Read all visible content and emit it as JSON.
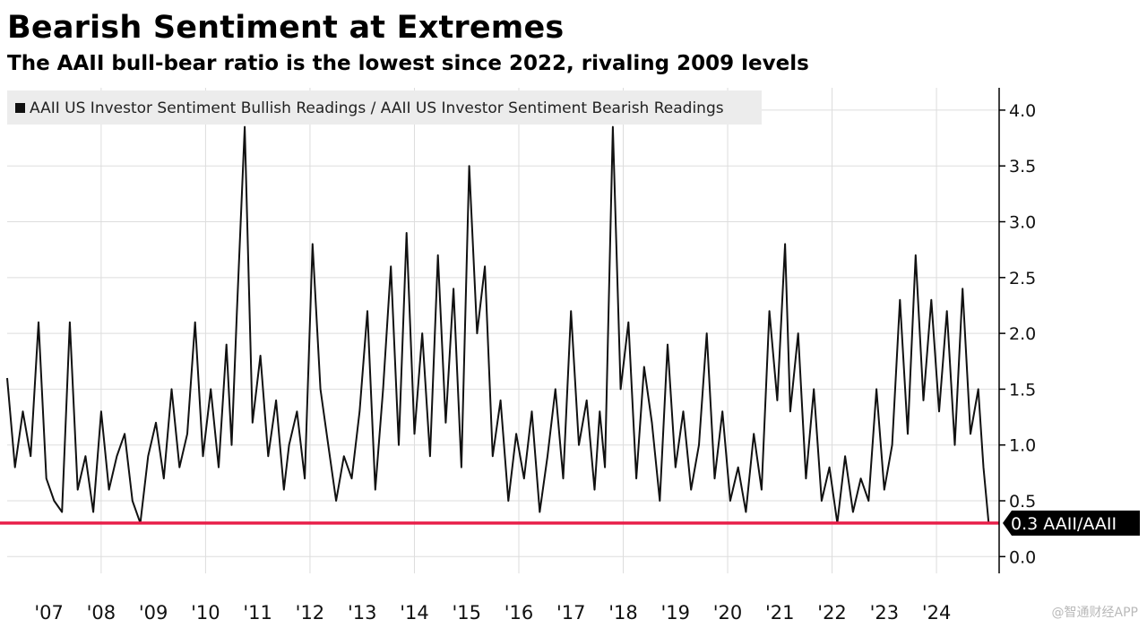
{
  "title": "Bearish Sentiment at Extremes",
  "subtitle": "The AAII bull-bear ratio is the lowest since 2022, rivaling 2009 levels",
  "watermark": "@智通财经APP",
  "colors": {
    "line": "#111111",
    "reference": "#e8204a",
    "callout_bg": "#000000",
    "grid": "#dddddd",
    "legend_bg": "#ececec"
  },
  "chart_data": {
    "type": "line",
    "title": "Bearish Sentiment at Extremes",
    "subtitle": "The AAII bull-bear ratio is the lowest since 2022, rivaling 2009 levels",
    "legend": [
      "AAII US Investor Sentiment Bullish Readings / AAII US Investor Sentiment Bearish Readings"
    ],
    "legend_position": "top-left",
    "x_tick_labels": [
      "'07",
      "'08",
      "'09",
      "'10",
      "'11",
      "'12",
      "'13",
      "'14",
      "'15",
      "'16",
      "'17",
      "'18",
      "'19",
      "'20",
      "'21",
      "'22",
      "'23",
      "'24"
    ],
    "xlim": [
      2006.2,
      2025.2
    ],
    "ylim": [
      -0.15,
      4.2
    ],
    "y_ticks": [
      0.0,
      0.5,
      1.0,
      1.5,
      2.0,
      2.5,
      3.0,
      3.5,
      4.0
    ],
    "y_tick_labels": [
      "0.0",
      "0.5",
      "1.0",
      "1.5",
      "2.0",
      "2.5",
      "3.0",
      "3.5",
      "4.0"
    ],
    "y_axis_side": "right",
    "reference_line": {
      "value": 0.3,
      "label": "0.3 AAII/AAII"
    },
    "series": [
      {
        "name": "AAII US Investor Sentiment Bullish Readings / AAII US Investor Sentiment Bearish Readings",
        "x": [
          2006.2,
          2006.35,
          2006.5,
          2006.65,
          2006.8,
          2006.95,
          2007.1,
          2007.25,
          2007.4,
          2007.55,
          2007.7,
          2007.85,
          2008.0,
          2008.15,
          2008.3,
          2008.45,
          2008.6,
          2008.75,
          2008.9,
          2009.05,
          2009.2,
          2009.35,
          2009.5,
          2009.65,
          2009.8,
          2009.95,
          2010.1,
          2010.25,
          2010.4,
          2010.5,
          2010.6,
          2010.75,
          2010.9,
          2011.05,
          2011.2,
          2011.35,
          2011.5,
          2011.6,
          2011.75,
          2011.9,
          2012.05,
          2012.2,
          2012.35,
          2012.5,
          2012.65,
          2012.8,
          2012.95,
          2013.1,
          2013.25,
          2013.4,
          2013.55,
          2013.7,
          2013.85,
          2014.0,
          2014.15,
          2014.3,
          2014.45,
          2014.6,
          2014.75,
          2014.9,
          2015.05,
          2015.2,
          2015.35,
          2015.5,
          2015.65,
          2015.8,
          2015.95,
          2016.1,
          2016.25,
          2016.4,
          2016.55,
          2016.7,
          2016.85,
          2017.0,
          2017.15,
          2017.3,
          2017.45,
          2017.55,
          2017.65,
          2017.8,
          2017.95,
          2018.1,
          2018.25,
          2018.4,
          2018.55,
          2018.7,
          2018.85,
          2019.0,
          2019.15,
          2019.3,
          2019.45,
          2019.6,
          2019.75,
          2019.9,
          2020.05,
          2020.2,
          2020.35,
          2020.5,
          2020.65,
          2020.8,
          2020.95,
          2021.1,
          2021.2,
          2021.35,
          2021.5,
          2021.65,
          2021.8,
          2021.95,
          2022.1,
          2022.25,
          2022.4,
          2022.55,
          2022.7,
          2022.85,
          2023.0,
          2023.15,
          2023.3,
          2023.45,
          2023.6,
          2023.75,
          2023.9,
          2024.05,
          2024.2,
          2024.35,
          2024.5,
          2024.65,
          2024.8,
          2024.9,
          2025.0,
          2025.1
        ],
        "values": [
          1.6,
          0.8,
          1.3,
          0.9,
          2.1,
          0.7,
          0.5,
          0.4,
          2.1,
          0.6,
          0.9,
          0.4,
          1.3,
          0.6,
          0.9,
          1.1,
          0.5,
          0.3,
          0.9,
          1.2,
          0.7,
          1.5,
          0.8,
          1.1,
          2.1,
          0.9,
          1.5,
          0.8,
          1.9,
          1.0,
          2.2,
          3.85,
          1.2,
          1.8,
          0.9,
          1.4,
          0.6,
          1.0,
          1.3,
          0.7,
          2.8,
          1.5,
          1.0,
          0.5,
          0.9,
          0.7,
          1.3,
          2.2,
          0.6,
          1.5,
          2.6,
          1.0,
          2.9,
          1.1,
          2.0,
          0.9,
          2.7,
          1.2,
          2.4,
          0.8,
          3.5,
          2.0,
          2.6,
          0.9,
          1.4,
          0.5,
          1.1,
          0.7,
          1.3,
          0.4,
          0.9,
          1.5,
          0.7,
          2.2,
          1.0,
          1.4,
          0.6,
          1.3,
          0.8,
          3.85,
          1.5,
          2.1,
          0.7,
          1.7,
          1.2,
          0.5,
          1.9,
          0.8,
          1.3,
          0.6,
          1.0,
          2.0,
          0.7,
          1.3,
          0.5,
          0.8,
          0.4,
          1.1,
          0.6,
          2.2,
          1.4,
          2.8,
          1.3,
          2.0,
          0.7,
          1.5,
          0.5,
          0.8,
          0.3,
          0.9,
          0.4,
          0.7,
          0.5,
          1.5,
          0.6,
          1.0,
          2.3,
          1.1,
          2.7,
          1.4,
          2.3,
          1.3,
          2.2,
          1.0,
          2.4,
          1.1,
          1.5,
          0.8,
          0.3,
          0.3
        ]
      }
    ]
  }
}
